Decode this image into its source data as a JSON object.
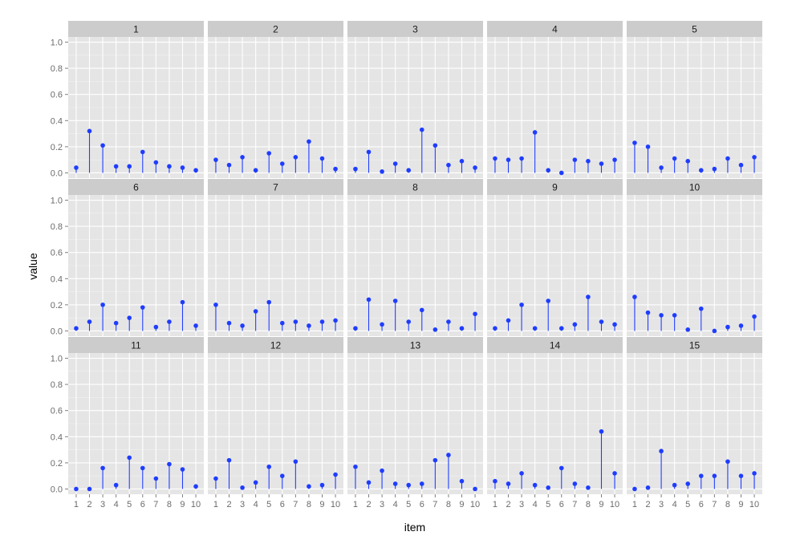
{
  "chart_data": {
    "type": "lollipop",
    "facets": [
      "1",
      "2",
      "3",
      "4",
      "5",
      "6",
      "7",
      "8",
      "9",
      "10",
      "11",
      "12",
      "13",
      "14",
      "15"
    ],
    "x": [
      1,
      2,
      3,
      4,
      5,
      6,
      7,
      8,
      9,
      10
    ],
    "x_tick_labels": [
      "1",
      "2",
      "3",
      "4",
      "5",
      "6",
      "7",
      "8",
      "9",
      "10"
    ],
    "y_tick_labels": [
      "0.0",
      "0.2",
      "0.4",
      "0.6",
      "0.8",
      "1.0"
    ],
    "xlabel": "item",
    "ylabel": "value",
    "ylim": [
      -0.04,
      1.04
    ],
    "grid": true,
    "series": [
      {
        "facet": "1",
        "values": [
          0.04,
          0.32,
          0.21,
          0.05,
          0.05,
          0.16,
          0.08,
          0.05,
          0.04,
          0.02
        ]
      },
      {
        "facet": "2",
        "values": [
          0.1,
          0.06,
          0.12,
          0.02,
          0.15,
          0.07,
          0.12,
          0.24,
          0.11,
          0.03
        ]
      },
      {
        "facet": "3",
        "values": [
          0.03,
          0.16,
          0.01,
          0.07,
          0.02,
          0.33,
          0.21,
          0.06,
          0.09,
          0.04
        ]
      },
      {
        "facet": "4",
        "values": [
          0.11,
          0.1,
          0.11,
          0.31,
          0.02,
          0.0,
          0.1,
          0.09,
          0.07,
          0.1
        ]
      },
      {
        "facet": "5",
        "values": [
          0.23,
          0.2,
          0.04,
          0.11,
          0.09,
          0.02,
          0.03,
          0.11,
          0.06,
          0.12
        ]
      },
      {
        "facet": "6",
        "values": [
          0.02,
          0.07,
          0.2,
          0.06,
          0.1,
          0.18,
          0.03,
          0.07,
          0.22,
          0.04
        ]
      },
      {
        "facet": "7",
        "values": [
          0.2,
          0.06,
          0.04,
          0.15,
          0.22,
          0.06,
          0.07,
          0.04,
          0.07,
          0.08
        ]
      },
      {
        "facet": "8",
        "values": [
          0.02,
          0.24,
          0.05,
          0.23,
          0.07,
          0.16,
          0.01,
          0.07,
          0.02,
          0.13
        ]
      },
      {
        "facet": "9",
        "values": [
          0.02,
          0.08,
          0.2,
          0.02,
          0.23,
          0.02,
          0.05,
          0.26,
          0.07,
          0.05
        ]
      },
      {
        "facet": "10",
        "values": [
          0.26,
          0.14,
          0.12,
          0.12,
          0.01,
          0.17,
          0.0,
          0.03,
          0.04,
          0.11
        ]
      },
      {
        "facet": "11",
        "values": [
          0.0,
          0.0,
          0.16,
          0.03,
          0.24,
          0.16,
          0.08,
          0.19,
          0.15,
          0.02
        ]
      },
      {
        "facet": "12",
        "values": [
          0.08,
          0.22,
          0.01,
          0.05,
          0.17,
          0.1,
          0.21,
          0.02,
          0.03,
          0.11
        ]
      },
      {
        "facet": "13",
        "values": [
          0.17,
          0.05,
          0.14,
          0.04,
          0.03,
          0.04,
          0.22,
          0.26,
          0.06,
          0.0
        ]
      },
      {
        "facet": "14",
        "values": [
          0.06,
          0.04,
          0.12,
          0.03,
          0.01,
          0.16,
          0.04,
          0.01,
          0.44,
          0.12
        ]
      },
      {
        "facet": "15",
        "values": [
          0.0,
          0.01,
          0.29,
          0.03,
          0.04,
          0.1,
          0.1,
          0.21,
          0.1,
          0.12
        ]
      }
    ],
    "colors": {
      "point": "#1f3dff",
      "panel_bg": "#e5e5e5",
      "strip_bg": "#cccccc",
      "grid_major": "#ffffff",
      "grid_minor": "#f2f2f2"
    }
  }
}
